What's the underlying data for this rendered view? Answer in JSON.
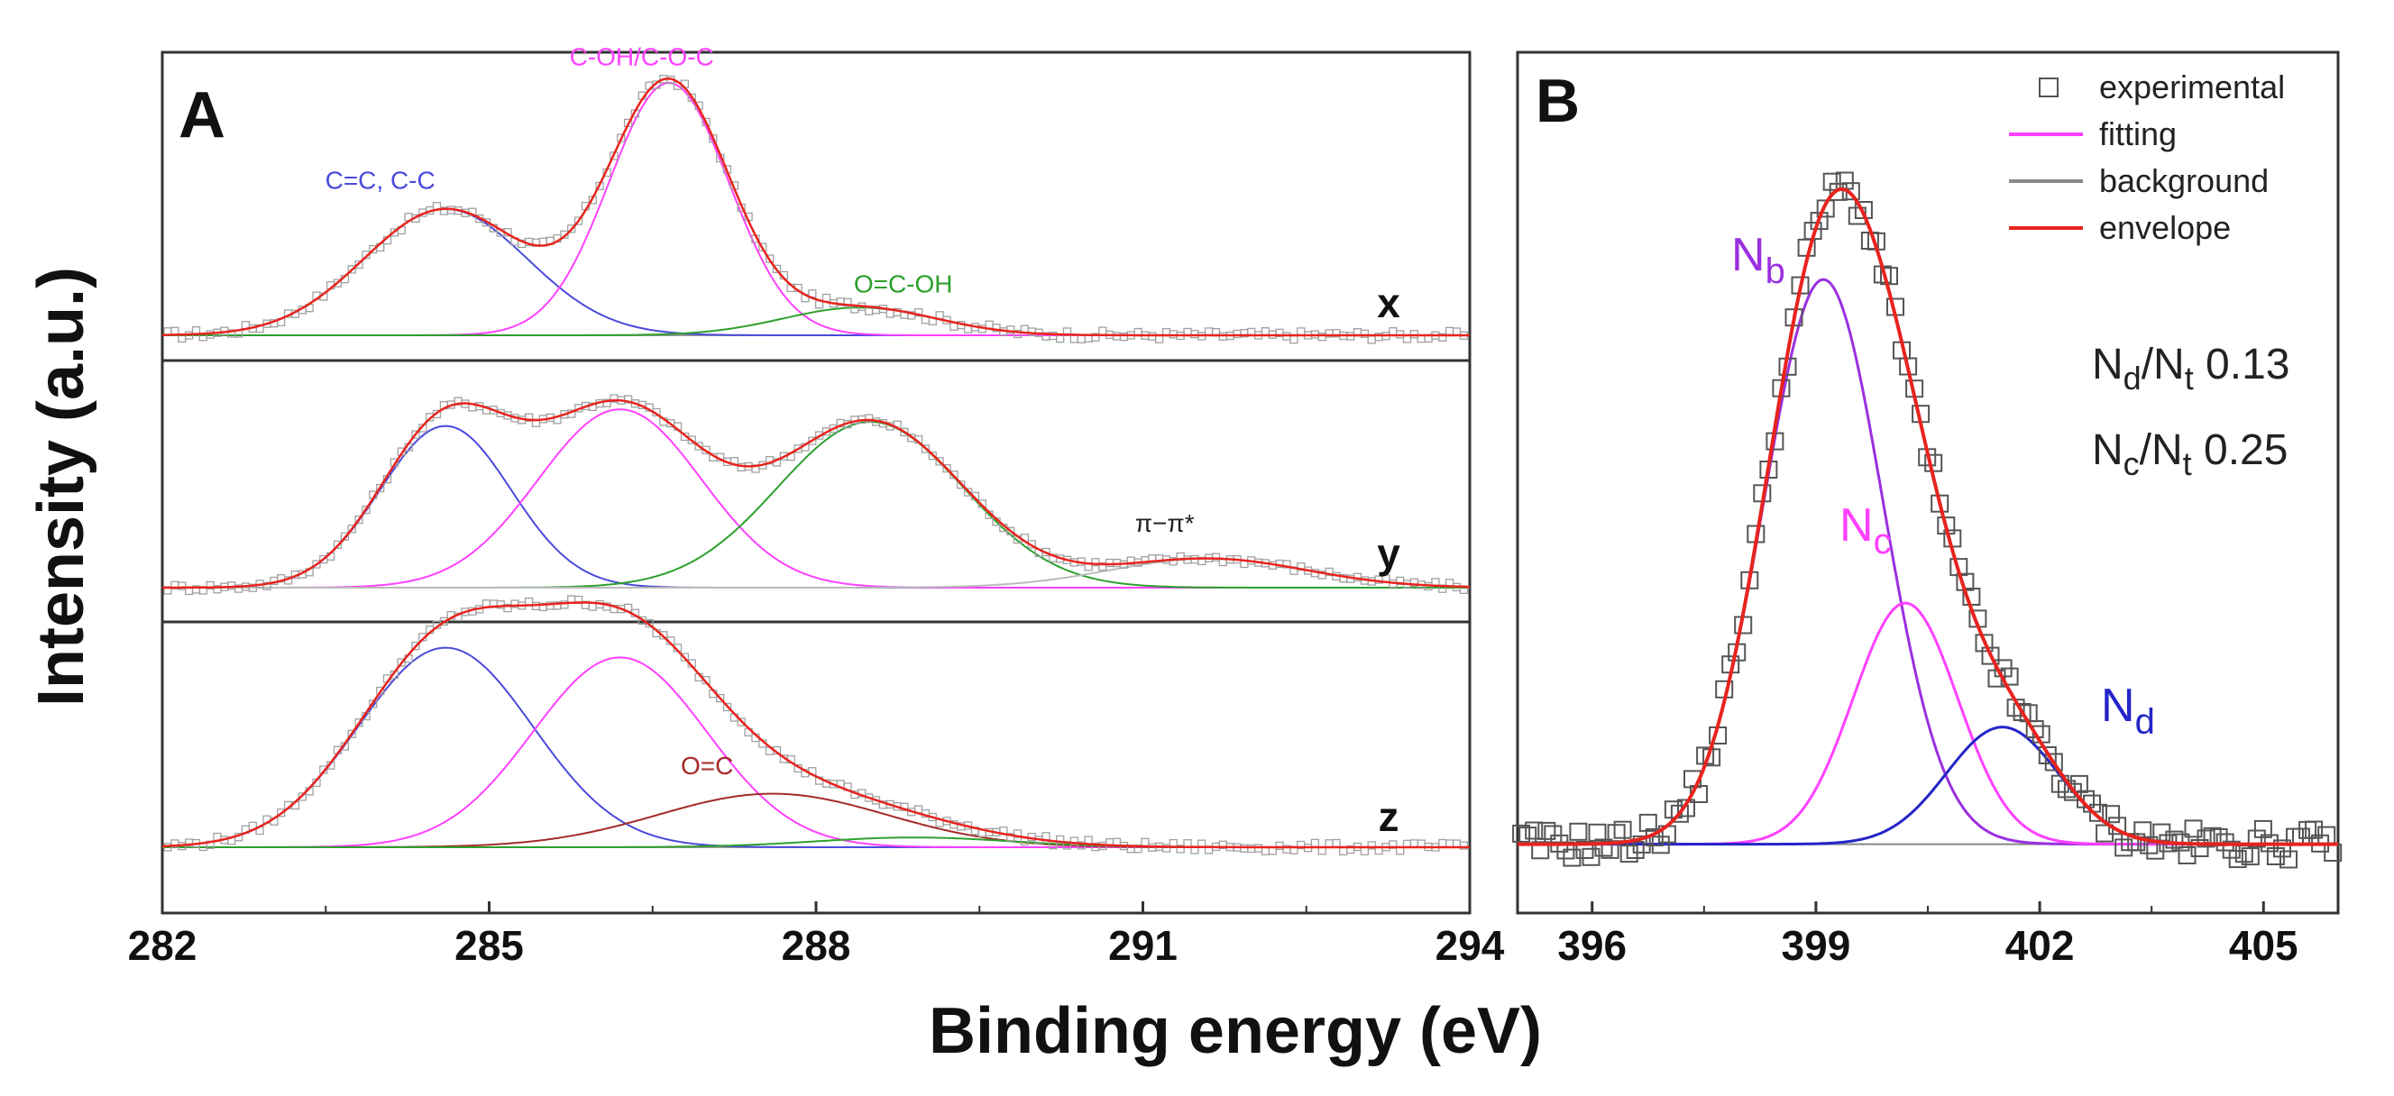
{
  "figure": {
    "ylabel": "Intensity (a.u.)",
    "xlabel": "Binding energy (eV)"
  },
  "chart_data": [
    {
      "panel": "A",
      "type": "line",
      "title": "",
      "xlabel": "Binding energy (eV)",
      "ylabel": "Intensity (a.u.)",
      "xlim": [
        282,
        294
      ],
      "xticks": [
        282,
        285,
        288,
        291,
        294
      ],
      "grid": false,
      "spectra": [
        {
          "label": "x",
          "ymax": 1.0,
          "peaks": [
            {
              "name": "C=C, C-C",
              "center": 284.6,
              "sigma": 0.75,
              "amplitude": 0.5,
              "color": "#4a4adc"
            },
            {
              "name": "C-OH/C-O-C",
              "center": 286.65,
              "sigma": 0.55,
              "amplitude": 1.0,
              "color": "#ff40ff"
            },
            {
              "name": "O=C-OH",
              "center": 288.4,
              "sigma": 0.7,
              "amplitude": 0.11,
              "color": "#2ca02c"
            }
          ],
          "annotations": [
            {
              "text": "C-OH/C-O-C",
              "x": 286.4,
              "y": 1.07,
              "color": "#ff40ff"
            },
            {
              "text": "C=C, C-C",
              "x": 284.0,
              "y": 0.58,
              "color": "#4a4adc"
            },
            {
              "text": "O=C-OH",
              "x": 288.8,
              "y": 0.17,
              "color": "#2ca02c"
            }
          ]
        },
        {
          "label": "y",
          "ymax": 1.0,
          "peaks": [
            {
              "name": "C=C, C-C",
              "center": 284.6,
              "sigma": 0.6,
              "amplitude": 0.78,
              "color": "#4a4adc"
            },
            {
              "name": "C-OH/C-O-C",
              "center": 286.2,
              "sigma": 0.75,
              "amplitude": 0.86,
              "color": "#ff40ff"
            },
            {
              "name": "O=C-OH",
              "center": 288.5,
              "sigma": 0.85,
              "amplitude": 0.8,
              "color": "#2ca02c"
            },
            {
              "name": "π−π*",
              "center": 291.6,
              "sigma": 0.9,
              "amplitude": 0.14,
              "color": "#bbbbbb"
            }
          ],
          "annotations": [
            {
              "text": "π−π*",
              "x": 291.2,
              "y": 0.27,
              "color": "#222222"
            }
          ]
        },
        {
          "label": "z",
          "ymax": 1.0,
          "peaks": [
            {
              "name": "C=C, C-C",
              "center": 284.6,
              "sigma": 0.8,
              "amplitude": 0.82,
              "color": "#4a4adc"
            },
            {
              "name": "C-OH/C-O-C",
              "center": 286.2,
              "sigma": 0.8,
              "amplitude": 0.78,
              "color": "#ff40ff"
            },
            {
              "name": "O=C",
              "center": 287.6,
              "sigma": 1.05,
              "amplitude": 0.22,
              "color": "#a52a2a"
            },
            {
              "name": "O=C-OH",
              "center": 288.9,
              "sigma": 0.9,
              "amplitude": 0.04,
              "color": "#2ca02c"
            }
          ],
          "annotations": [
            {
              "text": "O=C",
              "x": 287.0,
              "y": 0.3,
              "color": "#a52a2a"
            }
          ]
        }
      ]
    },
    {
      "panel": "B",
      "type": "line",
      "title": "",
      "xlabel": "Binding energy (eV)",
      "ylabel": "Intensity (a.u.)",
      "xlim": [
        395,
        406
      ],
      "ylim": [
        -0.1,
        1.15
      ],
      "xticks": [
        396,
        399,
        402,
        405
      ],
      "grid": false,
      "legend_position": "top-right",
      "legend": [
        {
          "label": "experimental",
          "kind": "marker",
          "color": "#555555"
        },
        {
          "label": "fitting",
          "kind": "line",
          "color": "#ff40ff"
        },
        {
          "label": "background",
          "kind": "line",
          "color": "#888888"
        },
        {
          "label": "envelope",
          "kind": "line",
          "color": "#e8231e"
        }
      ],
      "peaks": [
        {
          "name": "Nb",
          "main": "N",
          "sub": "b",
          "center": 399.1,
          "sigma": 0.8,
          "amplitude": 0.82,
          "color": "#9b30e0"
        },
        {
          "name": "Nc",
          "main": "N",
          "sub": "c",
          "center": 400.2,
          "sigma": 0.7,
          "amplitude": 0.35,
          "color": "#ff40ff"
        },
        {
          "name": "Nd",
          "main": "N",
          "sub": "d",
          "center": 401.5,
          "sigma": 0.75,
          "amplitude": 0.17,
          "color": "#2424c8"
        }
      ],
      "ratios": [
        {
          "main": "N",
          "sub1": "d",
          "mid": "/N",
          "sub2": "t",
          "value": "0.13"
        },
        {
          "main": "N",
          "sub1": "c",
          "mid": "/N",
          "sub2": "t",
          "value": "0.25"
        }
      ]
    }
  ]
}
